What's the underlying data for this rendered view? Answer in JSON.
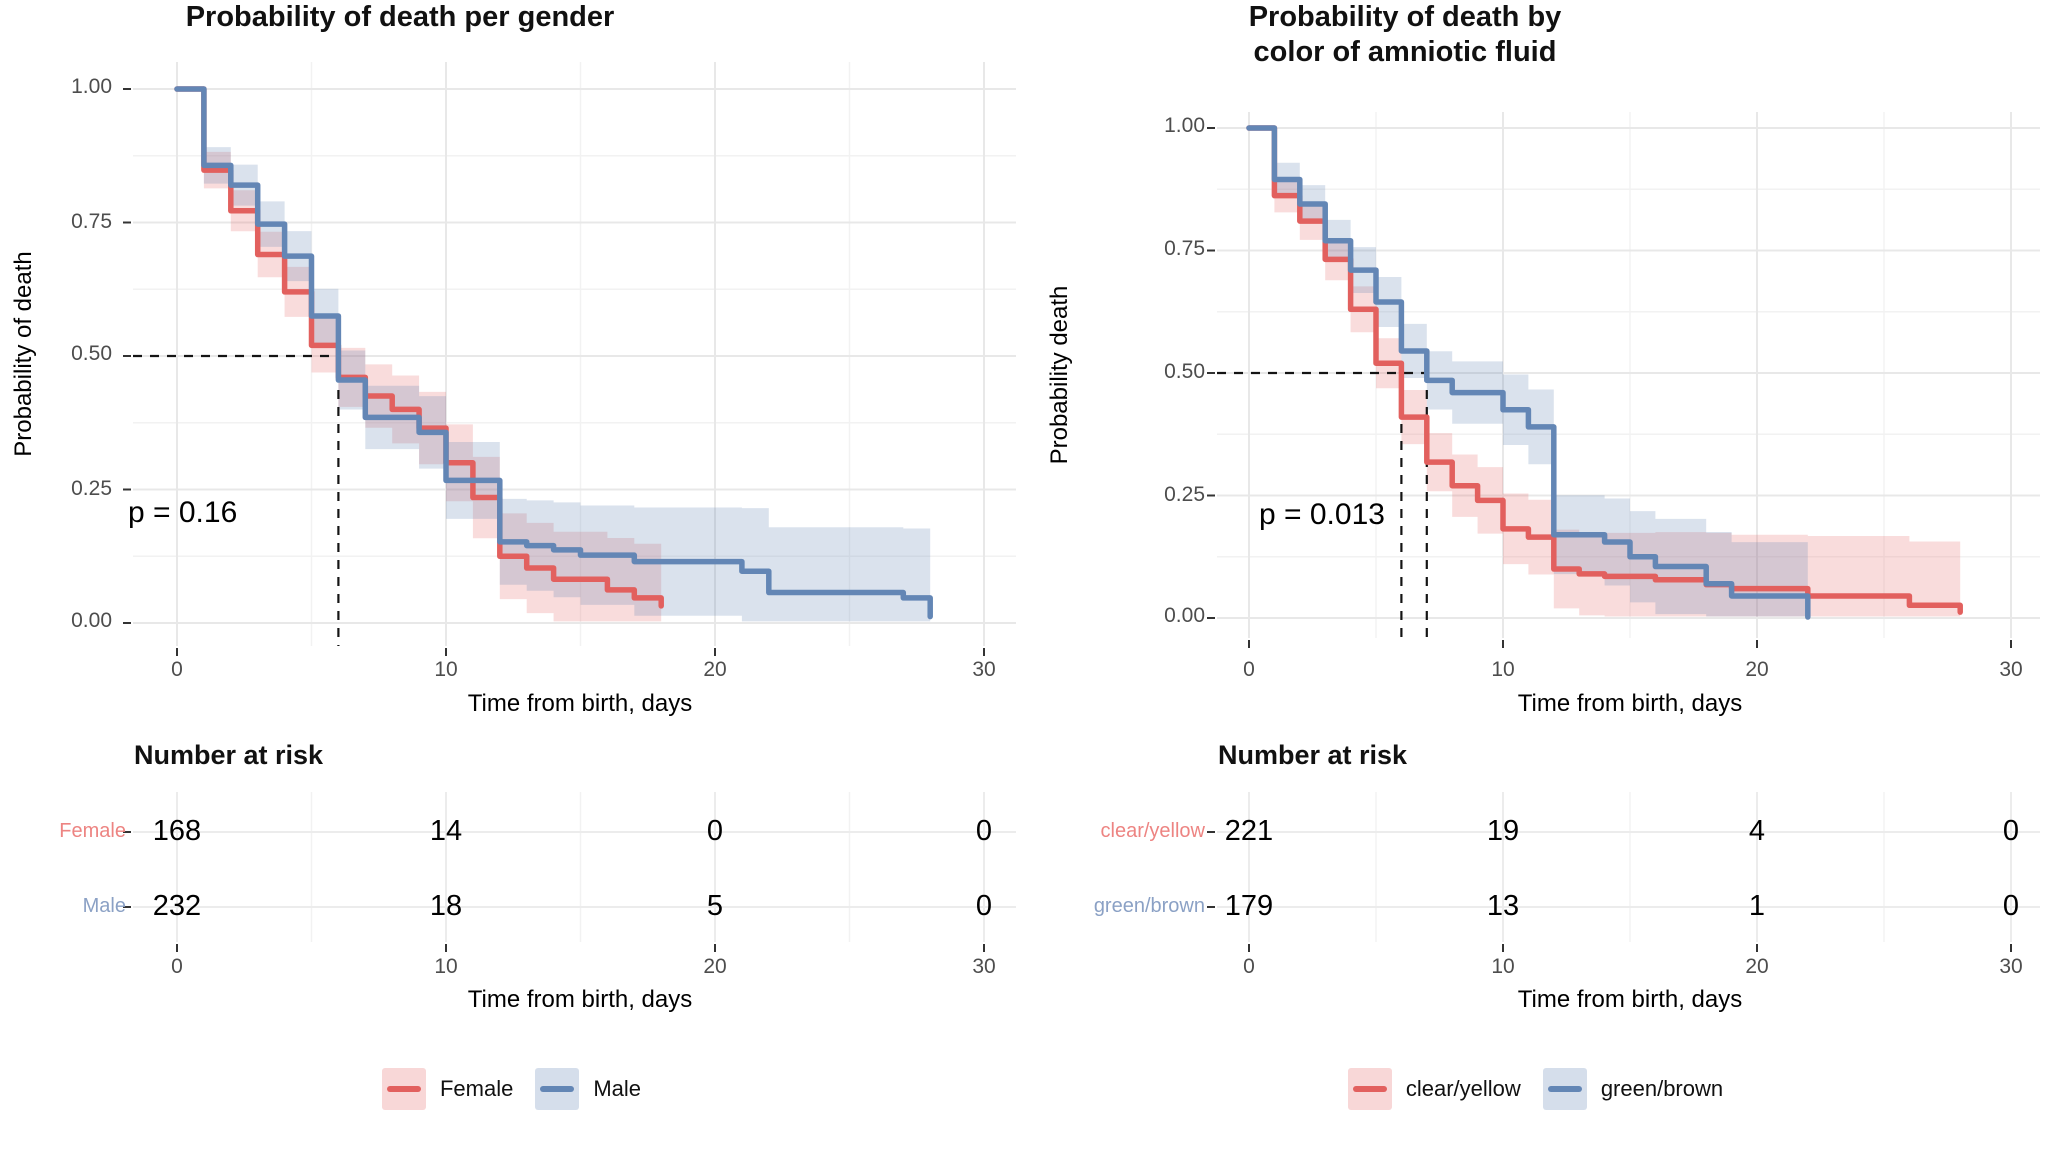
{
  "page": {
    "background": "#ffffff"
  },
  "chart_data": [
    {
      "type": "line",
      "variant": "kaplan-meier-step",
      "title": "Probability of death per gender",
      "title_lines": [
        "Probability of death per gender"
      ],
      "xlabel": "Time from birth, days",
      "ylabel": "Probability of death",
      "xlim": [
        0,
        30
      ],
      "ylim": [
        0,
        1
      ],
      "xticks": [
        0,
        10,
        20,
        30
      ],
      "yticks": [
        1.0,
        0.75,
        0.5,
        0.25,
        0.0
      ],
      "xtick_labels": [
        "0",
        "10",
        "20",
        "30"
      ],
      "ytick_labels": [
        "1.00",
        "0.75",
        "0.50",
        "0.25",
        "0.00"
      ],
      "grid": true,
      "legend_position": "bottom",
      "pvalue": 0.16,
      "pvalue_label": "p = 0.16",
      "median_guides": {
        "y": 0.5,
        "x": [
          6
        ]
      },
      "series": [
        {
          "name": "Female",
          "color": "#E2605E",
          "label_color": "#ED8482",
          "ribbon_opacity": 0.22,
          "steps": [
            [
              0,
              1
            ],
            [
              1,
              0.848
            ],
            [
              2,
              0.772
            ],
            [
              3,
              0.69
            ],
            [
              4,
              0.62
            ],
            [
              5,
              0.52
            ],
            [
              6,
              0.46
            ],
            [
              7,
              0.425
            ],
            [
              8,
              0.4
            ],
            [
              9,
              0.365
            ],
            [
              10,
              0.3
            ],
            [
              11,
              0.235
            ],
            [
              12,
              0.125
            ],
            [
              13,
              0.103
            ],
            [
              14,
              0.082
            ],
            [
              16,
              0.062
            ],
            [
              17,
              0.047
            ],
            [
              18,
              0.032
            ]
          ]
        },
        {
          "name": "Male",
          "color": "#6386B5",
          "label_color": "#8BA1C5",
          "ribbon_opacity": 0.24,
          "steps": [
            [
              0,
              1
            ],
            [
              1,
              0.857
            ],
            [
              2,
              0.82
            ],
            [
              3,
              0.747
            ],
            [
              4,
              0.687
            ],
            [
              5,
              0.575
            ],
            [
              6,
              0.455
            ],
            [
              7,
              0.385
            ],
            [
              9,
              0.357
            ],
            [
              10,
              0.267
            ],
            [
              12,
              0.152
            ],
            [
              13,
              0.145
            ],
            [
              14,
              0.137
            ],
            [
              15,
              0.127
            ],
            [
              17,
              0.115
            ],
            [
              21,
              0.097
            ],
            [
              22,
              0.057
            ],
            [
              27,
              0.047
            ],
            [
              28,
              0.012
            ]
          ]
        }
      ],
      "risk_table": {
        "title": "Number at risk",
        "xlabel": "Time from birth, days",
        "times": [
          0,
          10,
          20,
          30
        ],
        "rows": [
          {
            "name": "Female",
            "counts": [
              "168",
              "14",
              "0",
              "0"
            ]
          },
          {
            "name": "Male",
            "counts": [
              "232",
              "18",
              "5",
              "0"
            ]
          }
        ]
      },
      "legend": [
        "Female",
        "Male"
      ]
    },
    {
      "type": "line",
      "variant": "kaplan-meier-step",
      "title": "Probability of death by color of amniotic fluid",
      "title_lines": [
        "Probability of death by",
        "color of amniotic fluid"
      ],
      "xlabel": "Time from birth, days",
      "ylabel": "Probability death",
      "xlim": [
        0,
        30
      ],
      "ylim": [
        0,
        1
      ],
      "xticks": [
        0,
        10,
        20,
        30
      ],
      "yticks": [
        1.0,
        0.75,
        0.5,
        0.25,
        0.0
      ],
      "xtick_labels": [
        "0",
        "10",
        "20",
        "30"
      ],
      "ytick_labels": [
        "1.00",
        "0.75",
        "0.50",
        "0.25",
        "0.00"
      ],
      "grid": true,
      "legend_position": "bottom",
      "pvalue": 0.013,
      "pvalue_label": "p = 0.013",
      "median_guides": {
        "y": 0.5,
        "x": [
          6,
          7
        ]
      },
      "series": [
        {
          "name": "clear/yellow",
          "color": "#E2605E",
          "label_color": "#ED8482",
          "ribbon_opacity": 0.22,
          "steps": [
            [
              0,
              1
            ],
            [
              1,
              0.862
            ],
            [
              2,
              0.81
            ],
            [
              3,
              0.732
            ],
            [
              4,
              0.63
            ],
            [
              5,
              0.52
            ],
            [
              6,
              0.41
            ],
            [
              7,
              0.318
            ],
            [
              8,
              0.27
            ],
            [
              9,
              0.24
            ],
            [
              10,
              0.182
            ],
            [
              11,
              0.165
            ],
            [
              12,
              0.1
            ],
            [
              13,
              0.09
            ],
            [
              14,
              0.085
            ],
            [
              16,
              0.078
            ],
            [
              18,
              0.068
            ],
            [
              19,
              0.06
            ],
            [
              22,
              0.045
            ],
            [
              26,
              0.026
            ],
            [
              28,
              0.012
            ]
          ]
        },
        {
          "name": "green/brown",
          "color": "#6386B5",
          "label_color": "#8BA1C5",
          "ribbon_opacity": 0.24,
          "steps": [
            [
              0,
              1
            ],
            [
              1,
              0.895
            ],
            [
              2,
              0.845
            ],
            [
              3,
              0.77
            ],
            [
              4,
              0.71
            ],
            [
              5,
              0.645
            ],
            [
              6,
              0.545
            ],
            [
              7,
              0.485
            ],
            [
              8,
              0.46
            ],
            [
              10,
              0.425
            ],
            [
              11,
              0.39
            ],
            [
              12,
              0.17
            ],
            [
              14,
              0.155
            ],
            [
              15,
              0.125
            ],
            [
              16,
              0.105
            ],
            [
              18,
              0.07
            ],
            [
              19,
              0.045
            ],
            [
              22,
              0.002
            ]
          ]
        }
      ],
      "risk_table": {
        "title": "Number at risk",
        "xlabel": "Time from birth, days",
        "times": [
          0,
          10,
          20,
          30
        ],
        "rows": [
          {
            "name": "clear/yellow",
            "counts": [
              "221",
              "19",
              "4",
              "0"
            ]
          },
          {
            "name": "green/brown",
            "counts": [
              "179",
              "13",
              "1",
              "0"
            ]
          }
        ]
      },
      "legend": [
        "clear/yellow",
        "green/brown"
      ]
    }
  ]
}
